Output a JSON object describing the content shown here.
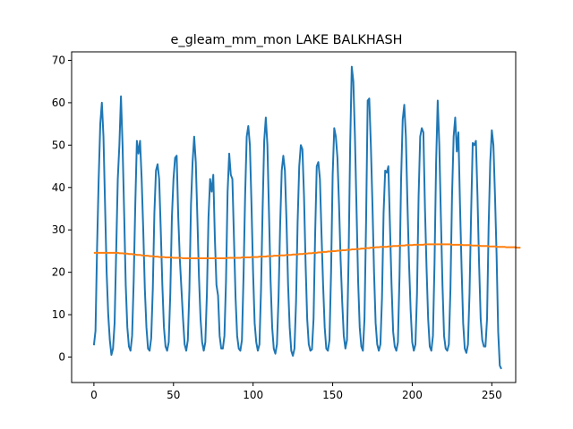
{
  "chart_data": {
    "type": "line",
    "title": "e_gleam_mm_mon LAKE BALKHASH",
    "xlabel": "",
    "ylabel": "",
    "xlim": [
      -14,
      265
    ],
    "ylim": [
      -6,
      72
    ],
    "xticks": [
      0,
      50,
      100,
      150,
      200,
      250
    ],
    "yticks": [
      0,
      10,
      20,
      30,
      40,
      50,
      60,
      70
    ],
    "grid": false,
    "legend": "none",
    "colors": [
      "#1f77b4",
      "#ff7f0e"
    ],
    "series": [
      {
        "values": [
          2.8,
          6.2,
          26,
          42,
          55,
          60,
          52,
          36,
          20,
          10,
          4,
          0.5,
          2,
          8,
          25,
          42,
          50,
          61.5,
          50,
          34,
          17,
          7,
          2.5,
          1.5,
          5,
          18,
          36,
          51,
          48,
          51,
          42,
          30,
          16,
          7,
          2,
          1.5,
          4.5,
          16,
          34,
          44,
          45.5,
          42,
          30,
          17,
          7,
          2.5,
          1.5,
          3.5,
          15,
          33,
          42,
          47,
          47.5,
          33,
          23,
          16,
          9,
          3,
          1.5,
          4,
          16,
          36,
          46,
          52,
          46,
          33,
          19,
          9,
          3.5,
          1.5,
          3.5,
          15,
          33,
          42,
          39,
          43,
          28,
          17,
          14.5,
          5,
          2,
          2,
          5,
          18,
          39,
          48,
          43,
          42,
          28,
          14,
          5,
          2,
          1.5,
          4,
          19,
          38,
          52,
          54.5,
          50,
          36,
          20,
          8,
          3.5,
          1.5,
          3,
          16,
          35,
          51,
          56.5,
          50,
          34,
          18,
          7,
          2,
          0.8,
          3,
          14,
          31,
          44,
          47.5,
          44,
          32,
          17,
          7,
          1.5,
          0.3,
          2,
          13,
          32,
          45,
          50,
          49,
          38,
          22,
          9,
          3,
          1.5,
          1.8,
          9,
          29,
          45,
          46,
          42,
          29,
          17,
          7,
          2,
          1.5,
          4,
          20,
          43,
          54,
          52,
          47,
          36,
          23,
          13,
          5,
          2,
          4,
          23,
          50,
          68.5,
          65,
          52,
          35,
          18,
          7,
          2.5,
          1.5,
          9,
          32,
          60.5,
          61,
          50,
          36,
          20,
          8,
          3,
          1.5,
          3,
          14,
          34,
          44,
          43.5,
          45,
          31,
          17,
          6,
          2.5,
          1.5,
          3.5,
          19,
          42,
          56,
          59.5,
          52,
          36,
          22,
          11,
          3.5,
          1.5,
          3,
          15,
          38,
          52,
          54,
          53,
          35,
          21,
          9,
          2.5,
          1.5,
          5,
          22,
          46,
          60.5,
          50,
          33,
          17,
          5,
          2,
          1.5,
          3,
          16,
          38,
          52,
          56.5,
          48.5,
          53,
          36,
          21,
          8,
          2,
          1,
          3,
          15,
          34,
          50.5,
          50,
          51,
          38,
          22,
          9,
          4,
          2.5,
          2.5,
          9,
          31,
          46,
          53.5,
          50,
          38,
          24,
          6,
          -2,
          -2.8
        ]
      },
      {
        "values": [
          24.6,
          24.6,
          24.6,
          24.6,
          24.6,
          24.6,
          24.6,
          24.6,
          24.6,
          24.6,
          24.6,
          24.6,
          24.6,
          24.6,
          24.6,
          24.6,
          24.5,
          24.5,
          24.5,
          24.4,
          24.4,
          24.4,
          24.3,
          24.3,
          24.3,
          24.2,
          24.2,
          24.1,
          24.1,
          24.1,
          24,
          24,
          23.9,
          23.9,
          23.9,
          23.8,
          23.8,
          23.8,
          23.7,
          23.7,
          23.7,
          23.6,
          23.6,
          23.6,
          23.6,
          23.5,
          23.5,
          23.5,
          23.5,
          23.5,
          23.4,
          23.4,
          23.4,
          23.4,
          23.4,
          23.4,
          23.3,
          23.3,
          23.3,
          23.3,
          23.3,
          23.3,
          23.3,
          23.3,
          23.3,
          23.3,
          23.3,
          23.3,
          23.3,
          23.3,
          23.3,
          23.3,
          23.3,
          23.3,
          23.3,
          23.3,
          23.3,
          23.3,
          23.3,
          23.3,
          23.3,
          23.3,
          23.3,
          23.3,
          23.4,
          23.4,
          23.4,
          23.4,
          23.4,
          23.4,
          23.4,
          23.4,
          23.4,
          23.5,
          23.5,
          23.5,
          23.5,
          23.5,
          23.5,
          23.6,
          23.6,
          23.6,
          23.6,
          23.6,
          23.7,
          23.7,
          23.7,
          23.7,
          23.7,
          23.8,
          23.8,
          23.8,
          23.8,
          23.9,
          23.9,
          23.9,
          23.9,
          24,
          24,
          24,
          24,
          24.1,
          24.1,
          24.1,
          24.1,
          24.2,
          24.2,
          24.2,
          24.2,
          24.3,
          24.3,
          24.3,
          24.4,
          24.4,
          24.4,
          24.5,
          24.5,
          24.5,
          24.6,
          24.6,
          24.6,
          24.7,
          24.7,
          24.7,
          24.8,
          24.8,
          24.8,
          24.9,
          24.9,
          24.9,
          25,
          25,
          25,
          25.1,
          25.1,
          25.1,
          25.2,
          25.2,
          25.2,
          25.3,
          25.3,
          25.3,
          25.4,
          25.4,
          25.4,
          25.5,
          25.5,
          25.5,
          25.6,
          25.6,
          25.6,
          25.7,
          25.7,
          25.7,
          25.8,
          25.8,
          25.8,
          25.9,
          25.9,
          25.9,
          26,
          26,
          26,
          26,
          26,
          26.1,
          26.1,
          26.1,
          26.2,
          26.2,
          26.2,
          26.2,
          26.3,
          26.3,
          26.3,
          26.3,
          26.4,
          26.4,
          26.4,
          26.4,
          26.4,
          26.5,
          26.5,
          26.5,
          26.5,
          26.5,
          26.5,
          26.5,
          26.6,
          26.6,
          26.6,
          26.6,
          26.6,
          26.6,
          26.6,
          26.6,
          26.6,
          26.6,
          26.6,
          26.6,
          26.6,
          26.6,
          26.6,
          26.6,
          26.6,
          26.5,
          26.5,
          26.5,
          26.5,
          26.5,
          26.5,
          26.5,
          26.4,
          26.4,
          26.4,
          26.4,
          26.4,
          26.4,
          26.3,
          26.3,
          26.3,
          26.3,
          26.3,
          26.2,
          26.2,
          26.2,
          26.2,
          26.2,
          26.1,
          26.1,
          26.1,
          26.1,
          26.1,
          26,
          26,
          26,
          26,
          26,
          26,
          25.9,
          25.9,
          25.9,
          25.9,
          25.9,
          25.9,
          25.9,
          25.8,
          25.8,
          25.8
        ]
      }
    ]
  }
}
